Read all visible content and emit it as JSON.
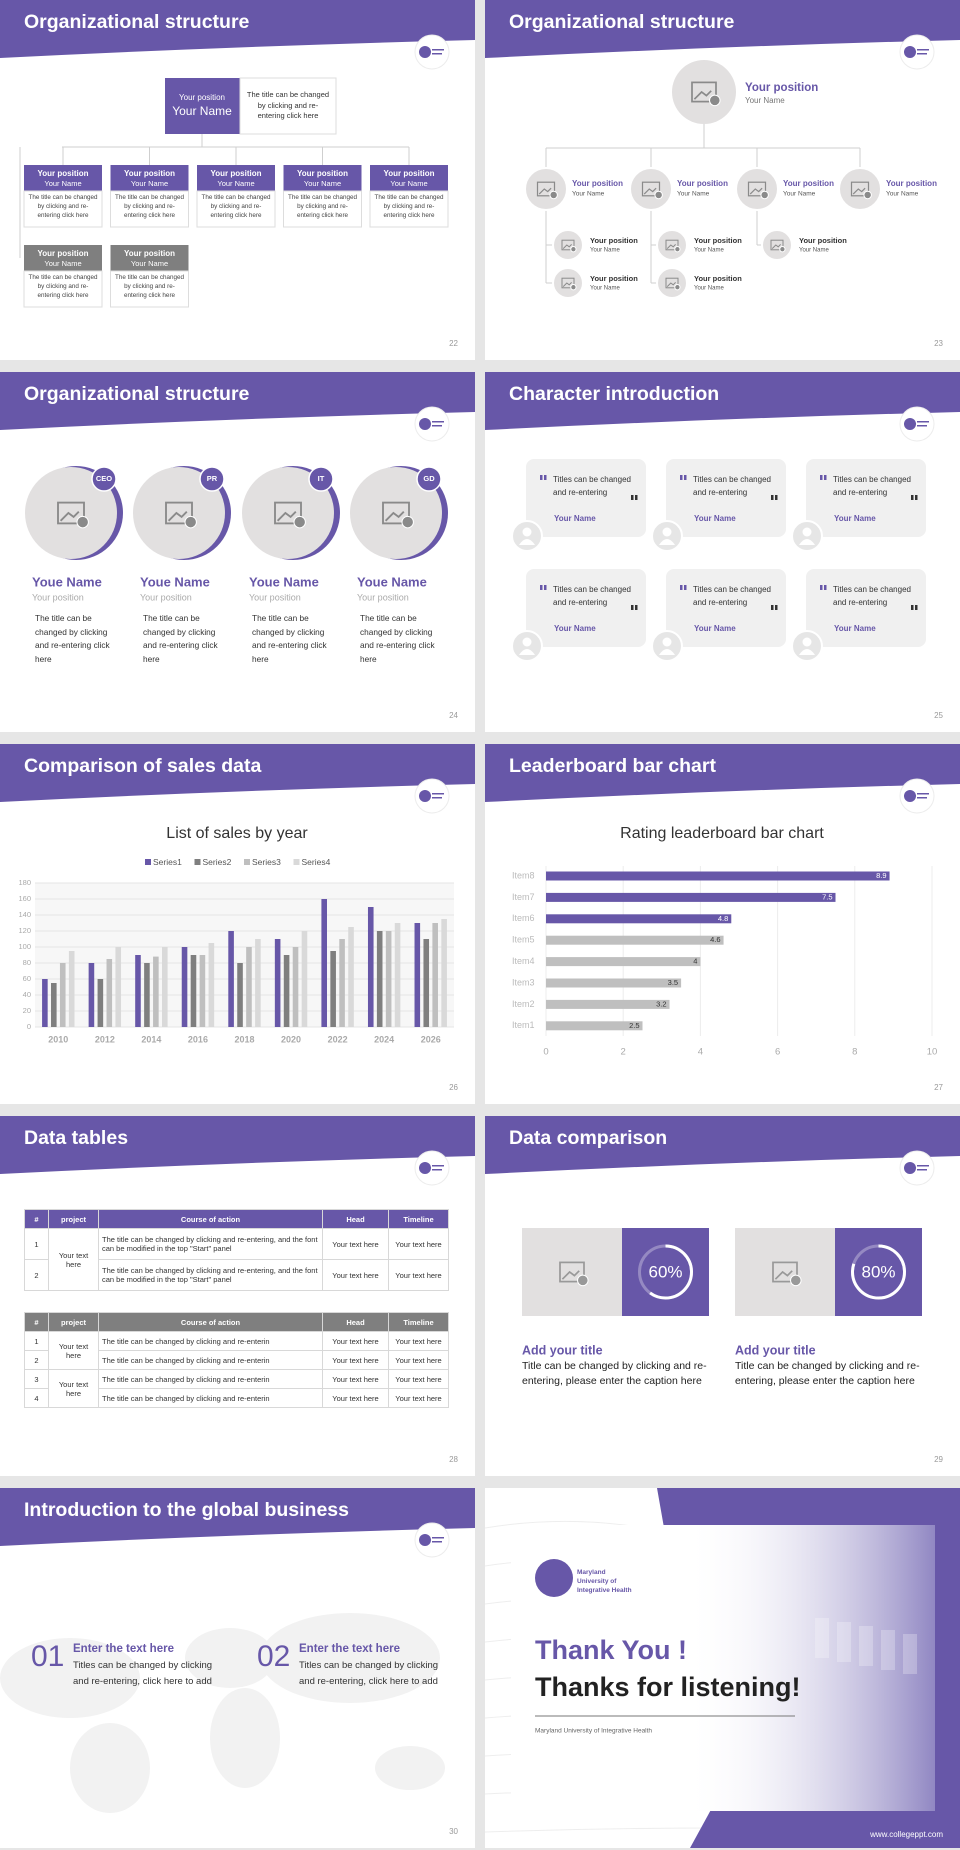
{
  "slides": [
    {
      "title": "Organizational structure",
      "page": "22",
      "head": {
        "position": "Your position",
        "name": "Your Name",
        "text": "The title can be changed by clicking and re-entering click here"
      },
      "members": [
        {
          "position": "Your position",
          "name": "Your Name",
          "text": "The title can be changed by clicking and re-entering click here",
          "color": "#6757a8"
        },
        {
          "position": "Your position",
          "name": "Your Name",
          "text": "The title can be changed by clicking and re-entering click here",
          "color": "#6757a8"
        },
        {
          "position": "Your position",
          "name": "Your Name",
          "text": "The title can be changed by clicking and re-entering click here",
          "color": "#6757a8"
        },
        {
          "position": "Your position",
          "name": "Your Name",
          "text": "The title can be changed by clicking and re-entering click here",
          "color": "#6757a8"
        },
        {
          "position": "Your position",
          "name": "Your Name",
          "text": "The title can be changed by clicking and re-entering click here",
          "color": "#6757a8"
        },
        {
          "position": "Your position",
          "name": "Your Name",
          "text": "The title can be changed by clicking and re-entering click here",
          "color": "#7f7f7f"
        },
        {
          "position": "Your position",
          "name": "Your Name",
          "text": "The title can be changed by clicking and re-entering click here",
          "color": "#7f7f7f"
        }
      ]
    },
    {
      "title": "Organizational structure",
      "page": "23",
      "head": {
        "position": "Your position",
        "name": "Your Name"
      },
      "managers": [
        {
          "position": "Your position",
          "name": "Your Name"
        },
        {
          "position": "Your position",
          "name": "Your Name"
        },
        {
          "position": "Your position",
          "name": "Your Name"
        },
        {
          "position": "Your position",
          "name": "Your Name"
        }
      ],
      "staff": [
        {
          "position": "Your position",
          "name": "Your Name"
        },
        {
          "position": "Your position",
          "name": "Your Name"
        },
        {
          "position": "Your position",
          "name": "Your Name"
        },
        {
          "position": "Your position",
          "name": "Your Name"
        },
        {
          "position": "Your position",
          "name": "Your Name"
        }
      ]
    },
    {
      "title": "Organizational structure",
      "page": "24",
      "people": [
        {
          "badge": "CEO",
          "name": "Youe Name",
          "position": "Your position",
          "text": "The title can be changed by clicking and re-entering click here"
        },
        {
          "badge": "PR",
          "name": "Youe Name",
          "position": "Your position",
          "text": "The title can be changed by clicking and re-entering click here"
        },
        {
          "badge": "IT",
          "name": "Youe Name",
          "position": "Your position",
          "text": "The title can be changed by clicking and re-entering click here"
        },
        {
          "badge": "GD",
          "name": "Youe Name",
          "position": "Your position",
          "text": "The title can be changed by clicking and re-entering click here"
        }
      ]
    },
    {
      "title": "Character introduction",
      "page": "25",
      "cards": [
        {
          "text": "Titles can be changed and re-entering",
          "name": "Your Name"
        },
        {
          "text": "Titles can be changed and re-entering",
          "name": "Your Name"
        },
        {
          "text": "Titles can be changed and re-entering",
          "name": "Your Name"
        },
        {
          "text": "Titles can be changed and re-entering",
          "name": "Your Name"
        },
        {
          "text": "Titles can be changed and re-entering",
          "name": "Your Name"
        },
        {
          "text": "Titles can be changed and re-entering",
          "name": "Your Name"
        }
      ]
    },
    {
      "title": "Comparison of sales data",
      "page": "26"
    },
    {
      "title": "Leaderboard bar chart",
      "page": "27"
    },
    {
      "title": "Data tables",
      "page": "28",
      "tables": [
        {
          "color": "#6757a8",
          "header": [
            "#",
            "project",
            "Course of action",
            "Head",
            "Timeline"
          ],
          "rows": [
            [
              "1",
              "Your text here",
              "The title can be changed by clicking and re-entering, and the font can be modified in the top \"Start\" panel",
              "Your text here",
              "Your text here"
            ],
            [
              "2",
              "The title can be changed by clicking and re-entering, and the font can be modified in the top \"Start\" panel",
              "Your text here",
              "Your text here"
            ]
          ]
        },
        {
          "color": "#7f7f7f",
          "header": [
            "#",
            "project",
            "Course of action",
            "Head",
            "Timeline"
          ],
          "rows": [
            [
              "1",
              "Your text here",
              "The title can be changed by clicking and re-enterin",
              "Your text here",
              "Your text here"
            ],
            [
              "2",
              "The title can be changed by clicking and re-enterin",
              "Your text here",
              "Your text here"
            ],
            [
              "3",
              "Your text here",
              "The title can be changed by clicking and re-enterin",
              "Your text here",
              "Your text here"
            ],
            [
              "4",
              "The title can be changed by clicking and re-enterin",
              "Your text here",
              "Your text here"
            ]
          ]
        }
      ]
    },
    {
      "title": "Data comparison",
      "page": "29",
      "items": [
        {
          "value": 60,
          "label": "60%",
          "title": "Add your title",
          "text": "Title can be changed by clicking and re-entering, please enter the caption here"
        },
        {
          "value": 80,
          "label": "80%",
          "title": "Add your title",
          "text": "Title can be changed by clicking and re-entering, please enter the caption here"
        }
      ]
    },
    {
      "title": "Introduction to the global business",
      "page": "30",
      "items": [
        {
          "number": "01",
          "title": "Enter the text here",
          "text": "Titles can be changed by clicking and re-entering, click here to add"
        },
        {
          "number": "02",
          "title": "Enter the text here",
          "text": "Titles can be changed by clicking and re-entering, click here to add"
        }
      ]
    },
    {
      "logo": "Maryland University of Integrative Health",
      "title": "Thank You !",
      "subtitle": "Thanks for listening!",
      "caption": "Maryland University of Integrative Health",
      "website": "www.collegeppt.com"
    }
  ],
  "chart_data": [
    {
      "type": "bar",
      "title": "List of sales by year",
      "categories": [
        "2010",
        "2012",
        "2014",
        "2016",
        "2018",
        "2020",
        "2022",
        "2024",
        "2026"
      ],
      "series": [
        {
          "name": "Series1",
          "color": "#6757a8",
          "values": [
            60,
            80,
            90,
            100,
            120,
            110,
            160,
            150,
            130
          ]
        },
        {
          "name": "Series2",
          "color": "#7f7f7f",
          "values": [
            55,
            60,
            80,
            90,
            80,
            90,
            95,
            120,
            110
          ]
        },
        {
          "name": "Series3",
          "color": "#bfbfbf",
          "values": [
            80,
            85,
            88,
            90,
            100,
            100,
            110,
            120,
            130
          ]
        },
        {
          "name": "Series4",
          "color": "#d9d9d9",
          "values": [
            95,
            100,
            100,
            105,
            110,
            120,
            125,
            130,
            135
          ]
        }
      ],
      "ylim": [
        0,
        180
      ],
      "yticks": [
        0,
        20,
        40,
        60,
        80,
        100,
        120,
        140,
        160,
        180
      ],
      "grid": true,
      "legend": "top"
    },
    {
      "type": "bar",
      "orientation": "horizontal",
      "title": "Rating leaderboard bar chart",
      "categories": [
        "Item8",
        "Item7",
        "Item6",
        "Item5",
        "Item4",
        "Item3",
        "Item2",
        "Item1"
      ],
      "values": [
        8.9,
        7.5,
        4.8,
        4.6,
        4,
        3.5,
        3.2,
        2.5
      ],
      "colors": [
        "#6757a8",
        "#6757a8",
        "#6757a8",
        "#bfbfbf",
        "#bfbfbf",
        "#bfbfbf",
        "#bfbfbf",
        "#bfbfbf"
      ],
      "xlim": [
        0,
        10
      ],
      "xticks": [
        0,
        2,
        4,
        6,
        8,
        10
      ],
      "grid": true
    }
  ]
}
